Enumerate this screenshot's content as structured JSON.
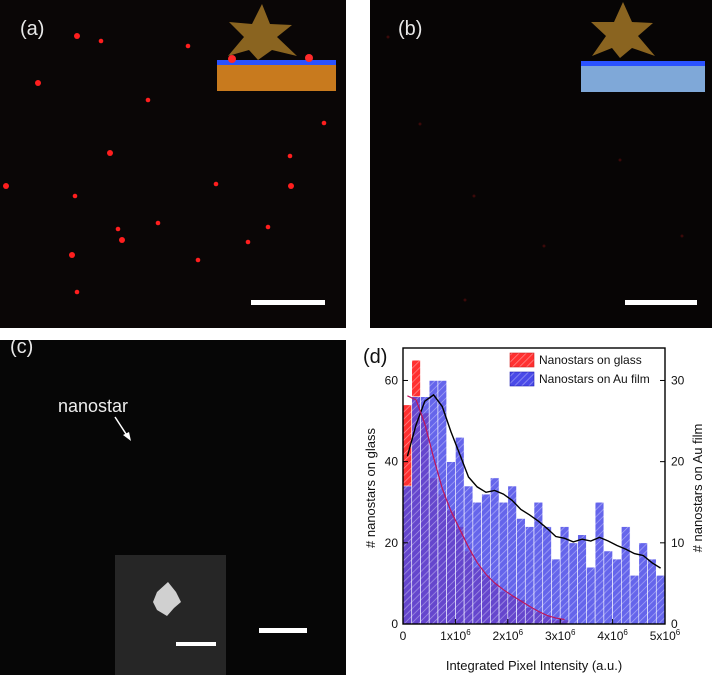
{
  "panels": {
    "a": {
      "label": "(a)"
    },
    "b": {
      "label": "(b)"
    },
    "c": {
      "label": "(c)",
      "annotation": "nanostar"
    },
    "d": {
      "label": "(d)"
    }
  },
  "colors": {
    "glass_bar": "#ff2a2a",
    "au_bar": "#3a3ae6",
    "fit_au": "#000000",
    "fit_glass": "#c0155a",
    "au_substrate": "#c87a1e",
    "glass_substrate": "#7fa8d8",
    "dots": "#ff2020"
  },
  "chart_data": {
    "type": "bar",
    "xlabel": "Integrated Pixel Intensity (a.u.)",
    "ylabel_left": "# nanostars on glass",
    "ylabel_right": "# nanostars on Au film",
    "xlim": [
      0,
      5000000
    ],
    "ylim_left": [
      0,
      68
    ],
    "ylim_right": [
      0,
      34
    ],
    "x_ticks": [
      {
        "value": 0,
        "base": "0",
        "exp": ""
      },
      {
        "value": 1000000,
        "base": "1x10",
        "exp": "6"
      },
      {
        "value": 2000000,
        "base": "2x10",
        "exp": "6"
      },
      {
        "value": 3000000,
        "base": "3x10",
        "exp": "6"
      },
      {
        "value": 4000000,
        "base": "4x10",
        "exp": "6"
      },
      {
        "value": 5000000,
        "base": "5x10",
        "exp": "6"
      }
    ],
    "y_ticks_left": [
      "0",
      "20",
      "40",
      "60"
    ],
    "y_ticks_right": [
      "0",
      "10",
      "20",
      "30"
    ],
    "bin_width": 166667,
    "legend": {
      "placement": "top-right"
    },
    "series": [
      {
        "name": "Nanostars on glass",
        "axis": "left",
        "bin_start": [
          0,
          166667,
          333333,
          500000,
          666667,
          833333,
          1000000,
          1166667,
          1333333,
          1500000,
          1666667,
          1833333,
          2000000,
          2166667,
          2333333,
          2500000,
          2666667,
          2833333,
          3000000
        ],
        "values": [
          54,
          65,
          52,
          36,
          32,
          28,
          24,
          18,
          14,
          12,
          10,
          8,
          7,
          6,
          4,
          3,
          2,
          1,
          1
        ]
      },
      {
        "name": "Nanostars on Au film",
        "axis": "right",
        "bin_start": [
          0,
          166667,
          333333,
          500000,
          666667,
          833333,
          1000000,
          1166667,
          1333333,
          1500000,
          1666667,
          1833333,
          2000000,
          2166667,
          2333333,
          2500000,
          2666667,
          2833333,
          3000000,
          3166667,
          3333333,
          3500000,
          3666667,
          3833333,
          4000000,
          4166667,
          4333333,
          4500000,
          4666667,
          4833333
        ],
        "values": [
          17,
          28,
          28,
          30,
          30,
          20,
          23,
          17,
          15,
          16,
          18,
          15,
          17,
          13,
          12,
          15,
          12,
          8,
          12,
          10,
          11,
          7,
          15,
          9,
          8,
          12,
          6,
          10,
          8,
          6
        ]
      }
    ]
  }
}
